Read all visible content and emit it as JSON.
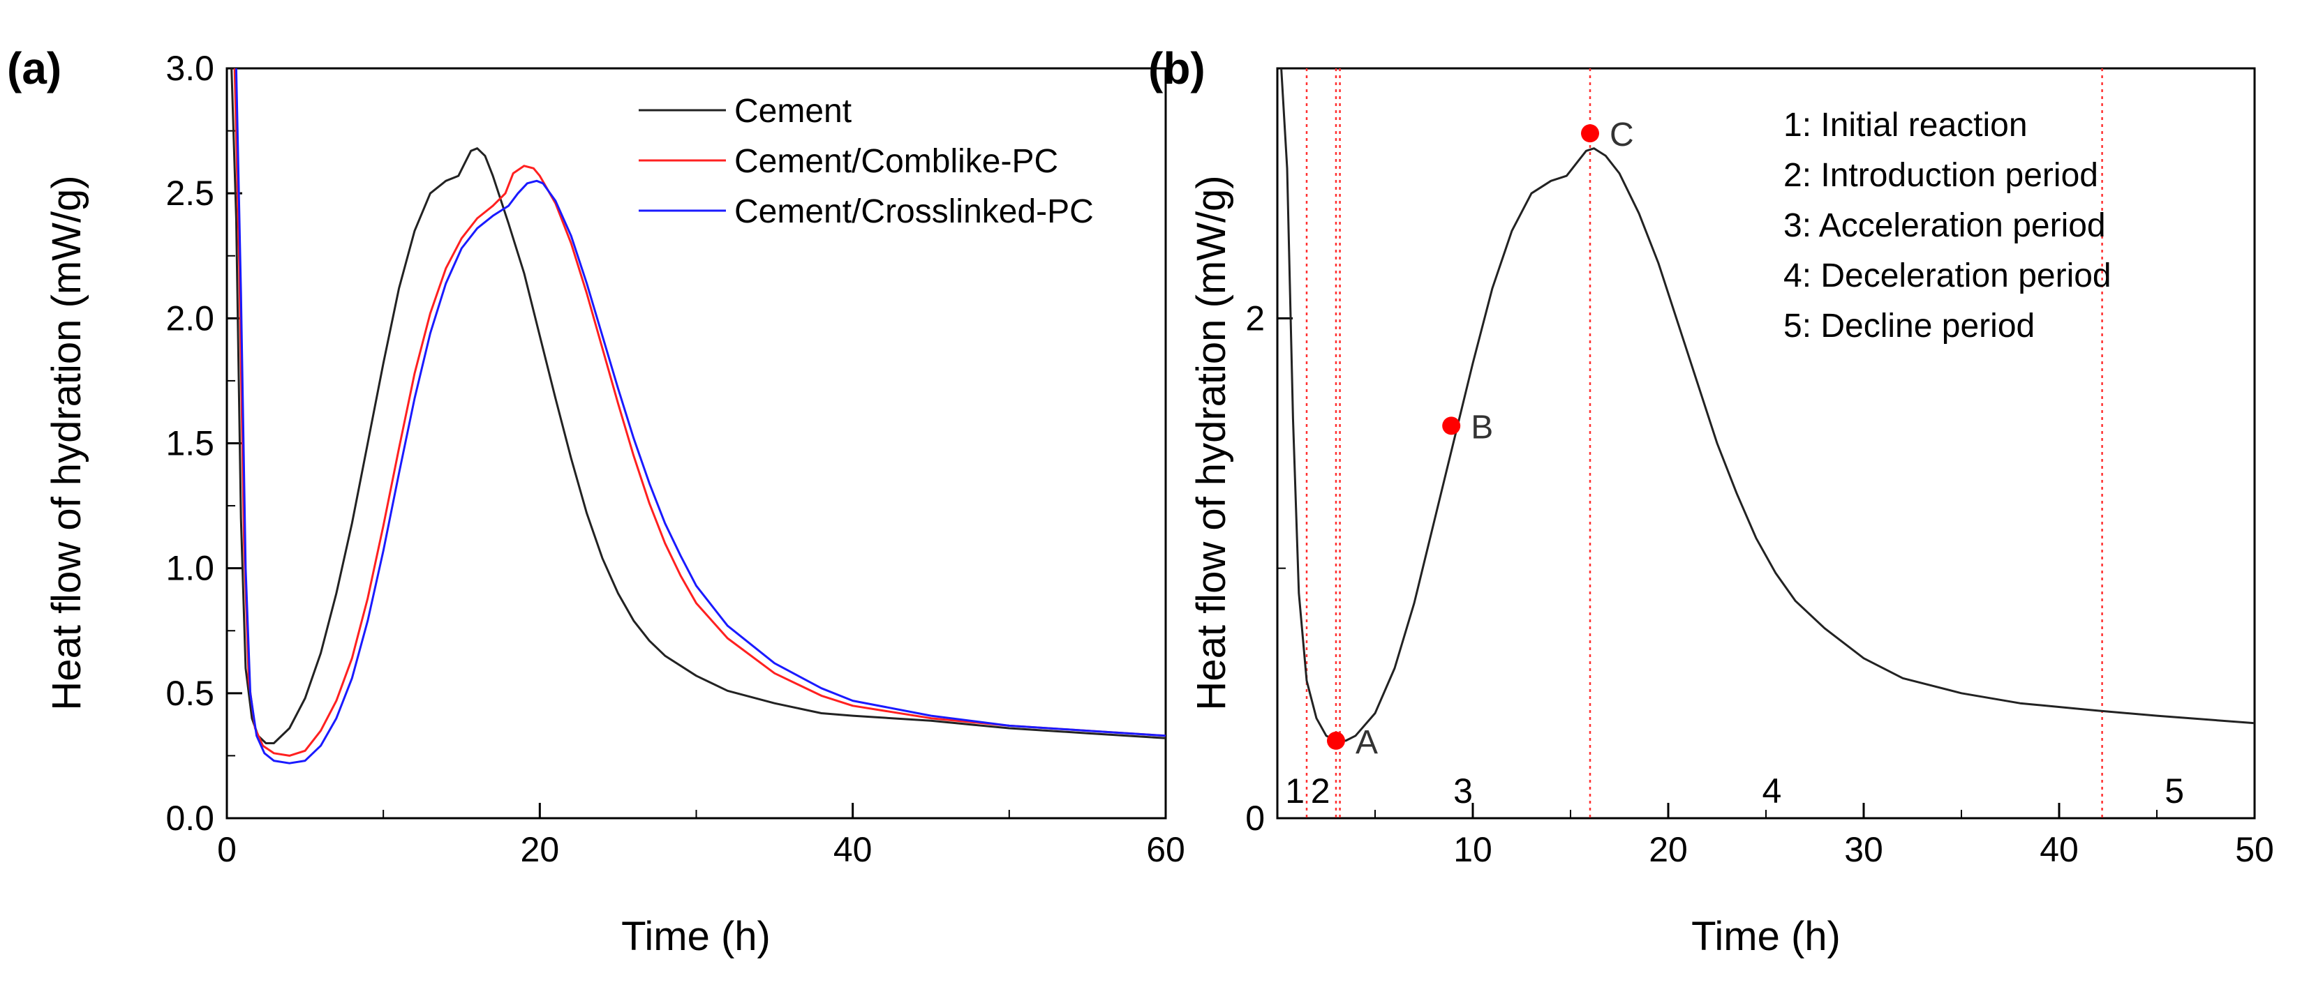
{
  "chart_data": [
    {
      "panel": "(a)",
      "type": "line",
      "xlabel": "Time (h)",
      "ylabel": "Heat flow of hydration (mW/g)",
      "xlim": [
        0,
        60
      ],
      "ylim": [
        0.0,
        3.0
      ],
      "xticks": [
        "0",
        "20",
        "40",
        "60"
      ],
      "yticks": [
        "0.0",
        "0.5",
        "1.0",
        "1.5",
        "2.0",
        "2.5",
        "3.0"
      ],
      "legend_position": "top-right",
      "series": [
        {
          "name": "Cement",
          "color": "#222222",
          "x": [
            0.3,
            0.6,
            0.9,
            1.2,
            1.6,
            2.0,
            2.5,
            3.0,
            4.0,
            5.0,
            6.0,
            7.0,
            8.0,
            9.0,
            10.0,
            11.0,
            12.0,
            13.0,
            14.0,
            14.8,
            15.2,
            15.6,
            16.0,
            16.5,
            17.0,
            18.0,
            19.0,
            20.0,
            21.0,
            22.0,
            23.0,
            24.0,
            25.0,
            26.0,
            27.0,
            28.0,
            30.0,
            32.0,
            35.0,
            38.0,
            40.0,
            45.0,
            50.0,
            55.0,
            60.0
          ],
          "y": [
            3.0,
            2.4,
            1.2,
            0.6,
            0.4,
            0.33,
            0.3,
            0.3,
            0.36,
            0.48,
            0.66,
            0.9,
            1.18,
            1.5,
            1.82,
            2.12,
            2.35,
            2.5,
            2.55,
            2.57,
            2.62,
            2.67,
            2.68,
            2.65,
            2.57,
            2.38,
            2.18,
            1.93,
            1.68,
            1.44,
            1.22,
            1.04,
            0.9,
            0.79,
            0.71,
            0.65,
            0.57,
            0.51,
            0.46,
            0.42,
            0.41,
            0.39,
            0.36,
            0.34,
            0.32
          ]
        },
        {
          "name": "Cement/Comblike-PC",
          "color": "#ff2020",
          "x": [
            0.5,
            0.8,
            1.1,
            1.4,
            1.8,
            2.3,
            3.0,
            4.0,
            5.0,
            6.0,
            7.0,
            8.0,
            9.0,
            10.0,
            11.0,
            12.0,
            13.0,
            14.0,
            15.0,
            16.0,
            17.0,
            17.8,
            18.3,
            19.0,
            19.6,
            20.0,
            21.0,
            22.0,
            23.0,
            24.0,
            25.0,
            26.0,
            27.0,
            28.0,
            29.0,
            30.0,
            32.0,
            35.0,
            38.0,
            40.0,
            45.0,
            50.0,
            55.0,
            60.0
          ],
          "y": [
            3.0,
            2.2,
            1.1,
            0.55,
            0.36,
            0.29,
            0.26,
            0.25,
            0.27,
            0.35,
            0.47,
            0.64,
            0.88,
            1.17,
            1.48,
            1.78,
            2.02,
            2.2,
            2.32,
            2.4,
            2.45,
            2.5,
            2.58,
            2.61,
            2.6,
            2.57,
            2.46,
            2.3,
            2.1,
            1.88,
            1.66,
            1.45,
            1.26,
            1.1,
            0.97,
            0.86,
            0.72,
            0.58,
            0.49,
            0.45,
            0.4,
            0.37,
            0.35,
            0.33
          ]
        },
        {
          "name": "Cement/Crosslinked-PC",
          "color": "#1a1aff",
          "x": [
            0.6,
            0.9,
            1.2,
            1.5,
            1.9,
            2.4,
            3.0,
            4.0,
            5.0,
            6.0,
            7.0,
            8.0,
            9.0,
            10.0,
            11.0,
            12.0,
            13.0,
            14.0,
            15.0,
            16.0,
            17.0,
            18.0,
            18.6,
            19.2,
            19.8,
            20.2,
            21.0,
            22.0,
            23.0,
            24.0,
            25.0,
            26.0,
            27.0,
            28.0,
            29.0,
            30.0,
            32.0,
            35.0,
            38.0,
            40.0,
            45.0,
            50.0,
            55.0,
            60.0
          ],
          "y": [
            3.0,
            2.1,
            1.0,
            0.5,
            0.33,
            0.26,
            0.23,
            0.22,
            0.23,
            0.29,
            0.4,
            0.56,
            0.79,
            1.07,
            1.38,
            1.68,
            1.94,
            2.14,
            2.28,
            2.36,
            2.41,
            2.45,
            2.5,
            2.54,
            2.55,
            2.54,
            2.47,
            2.33,
            2.14,
            1.93,
            1.72,
            1.52,
            1.34,
            1.18,
            1.05,
            0.93,
            0.77,
            0.62,
            0.52,
            0.47,
            0.41,
            0.37,
            0.35,
            0.33
          ]
        }
      ]
    },
    {
      "panel": "(b)",
      "type": "line",
      "xlabel": "Time (h)",
      "ylabel": "Heat flow of hydration (mW/g)",
      "xlim": [
        0,
        50
      ],
      "ylim": [
        0,
        3.0
      ],
      "xticks": [
        "10",
        "20",
        "30",
        "40",
        "50"
      ],
      "yticks": [
        "0",
        "2"
      ],
      "series": [
        {
          "name": "Cement",
          "color": "#222222",
          "x": [
            0.2,
            0.5,
            0.8,
            1.1,
            1.5,
            2.0,
            2.5,
            3.0,
            3.5,
            4.0,
            5.0,
            6.0,
            7.0,
            8.0,
            9.0,
            10.0,
            11.0,
            12.0,
            13.0,
            14.0,
            14.8,
            15.4,
            15.8,
            16.2,
            16.8,
            17.5,
            18.5,
            19.5,
            20.5,
            21.5,
            22.5,
            23.5,
            24.5,
            25.5,
            26.5,
            28.0,
            30.0,
            32.0,
            35.0,
            38.0,
            42.0,
            45.0,
            50.0
          ],
          "y": [
            3.0,
            2.6,
            1.6,
            0.9,
            0.55,
            0.4,
            0.33,
            0.31,
            0.31,
            0.33,
            0.42,
            0.6,
            0.86,
            1.18,
            1.5,
            1.82,
            2.12,
            2.35,
            2.5,
            2.55,
            2.57,
            2.63,
            2.67,
            2.68,
            2.65,
            2.58,
            2.42,
            2.22,
            1.98,
            1.74,
            1.5,
            1.3,
            1.12,
            0.98,
            0.87,
            0.76,
            0.64,
            0.56,
            0.5,
            0.46,
            0.43,
            0.41,
            0.38
          ]
        }
      ],
      "markers": [
        {
          "label": "A",
          "x": 3.0,
          "y": 0.31,
          "color": "#ff0000"
        },
        {
          "label": "B",
          "x": 8.9,
          "y": 1.57,
          "color": "#ff0000"
        },
        {
          "label": "C",
          "x": 16.0,
          "y": 2.74,
          "color": "#ff0000"
        }
      ],
      "vlines": [
        1.5,
        3.0,
        3.2,
        16.0,
        42.2
      ],
      "region_labels": [
        {
          "text": "1",
          "x": 0.9
        },
        {
          "text": "2",
          "x": 2.2
        },
        {
          "text": "3",
          "x": 9.5
        },
        {
          "text": "4",
          "x": 25.3
        },
        {
          "text": "5",
          "x": 45.9
        }
      ],
      "annotations": [
        "1: Initial reaction",
        "2: Introduction period",
        "3: Acceleration period",
        "4: Deceleration period",
        "5: Decline period"
      ]
    }
  ]
}
